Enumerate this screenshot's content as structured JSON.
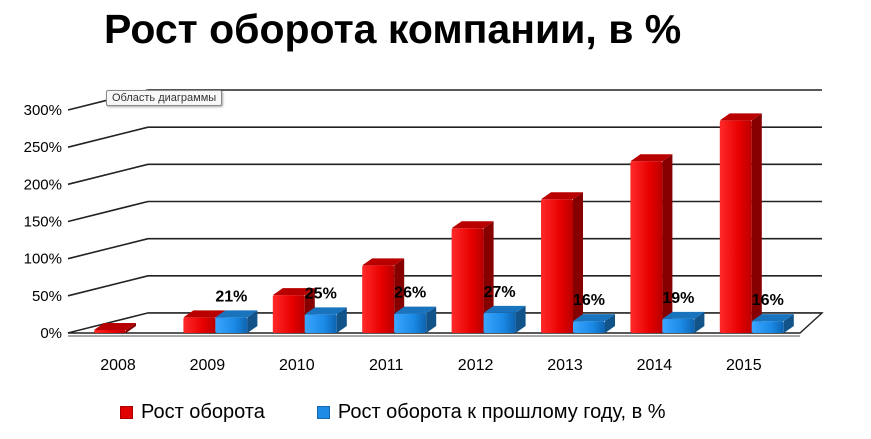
{
  "title": "Рост оборота компании, в %",
  "tooltip": "Область диаграммы",
  "legend": [
    {
      "name": "Рост оборота",
      "color": "#e00000"
    },
    {
      "name": "Рост оборота к прошлому году, в %",
      "color": "#1e8ce6"
    }
  ],
  "chart_data": {
    "type": "bar",
    "categories": [
      "2008",
      "2009",
      "2010",
      "2011",
      "2012",
      "2013",
      "2014",
      "2015"
    ],
    "series": [
      {
        "name": "Рост оборота",
        "color": "#e00000",
        "values": [
          0,
          21,
          51,
          91,
          141,
          180,
          231,
          286
        ],
        "labels": [
          null,
          null,
          null,
          null,
          null,
          null,
          null,
          null
        ]
      },
      {
        "name": "Рост оборота к прошлому году, в %",
        "color": "#1e8ce6",
        "values": [
          null,
          21,
          25,
          26,
          27,
          16,
          19,
          16
        ],
        "labels": [
          null,
          "21%",
          "25%",
          "26%",
          "27%",
          "16%",
          "19%",
          "16%"
        ]
      }
    ],
    "ytick_labels": [
      "0%",
      "50%",
      "100%",
      "150%",
      "200%",
      "250%",
      "300%"
    ],
    "ylim": [
      0,
      300
    ],
    "grid": true,
    "legend_position": "bottom",
    "style": "3d"
  }
}
